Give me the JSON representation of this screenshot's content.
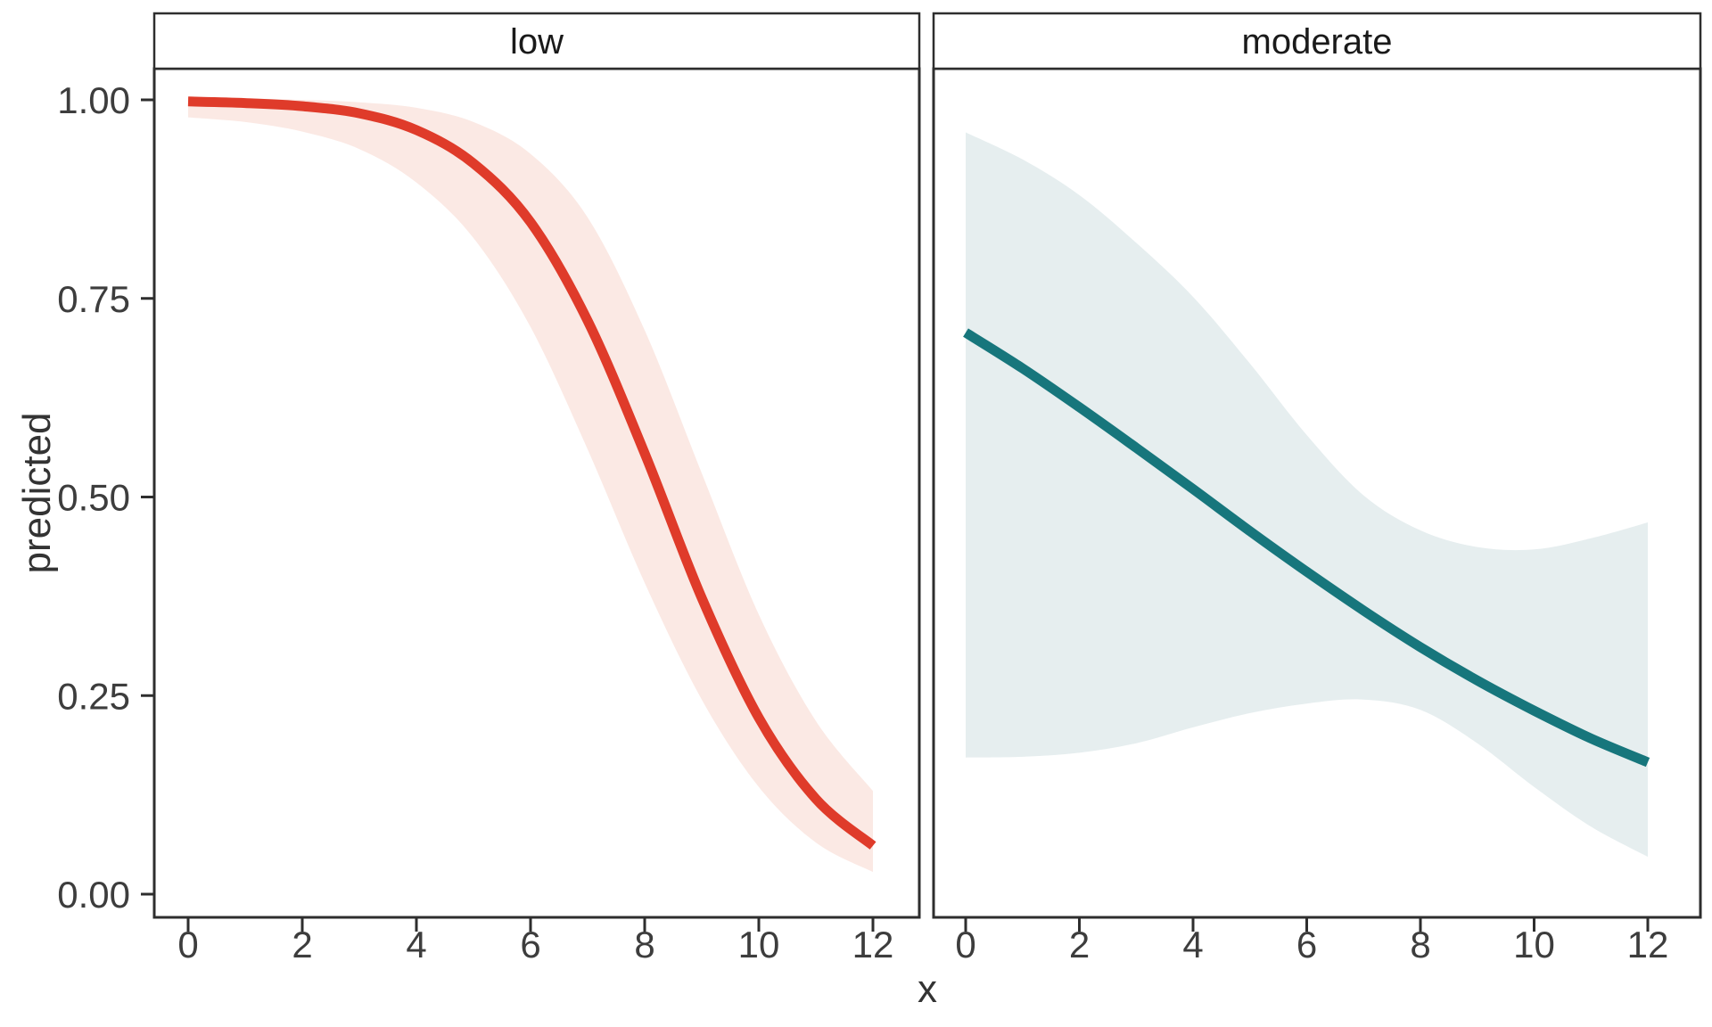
{
  "chart_data": {
    "type": "line",
    "title": "",
    "xlabel": "x",
    "ylabel": "predicted",
    "grid": "off",
    "legend": "none",
    "facet_labels": [
      "low",
      "moderate"
    ],
    "x_tick_labels": [
      "0",
      "2",
      "4",
      "6",
      "8",
      "10",
      "12"
    ],
    "x_tick_values": [
      0,
      2,
      4,
      6,
      8,
      10,
      12
    ],
    "y_tick_labels": [
      "0.00",
      "0.25",
      "0.50",
      "0.75",
      "1.00"
    ],
    "y_tick_values": [
      0,
      0.25,
      0.5,
      0.75,
      1.0
    ],
    "xlim": [
      -0.6,
      12.9
    ],
    "ylim": [
      -0.03,
      1.04
    ],
    "panels": [
      {
        "label": "low",
        "line_color": "#DF3B2A",
        "ribbon_color": "#FBE9E4",
        "x": [
          0,
          1,
          2,
          3,
          4,
          5,
          6,
          7,
          8,
          9,
          10,
          11,
          12
        ],
        "y": [
          0.998,
          0.996,
          0.992,
          0.983,
          0.962,
          0.92,
          0.846,
          0.722,
          0.555,
          0.373,
          0.222,
          0.12,
          0.061
        ],
        "ymax": [
          1.003,
          1.002,
          1.0,
          0.997,
          0.99,
          0.972,
          0.932,
          0.852,
          0.71,
          0.53,
          0.352,
          0.218,
          0.13
        ],
        "ymin": [
          0.978,
          0.972,
          0.96,
          0.938,
          0.896,
          0.826,
          0.714,
          0.56,
          0.392,
          0.245,
          0.135,
          0.065,
          0.028
        ]
      },
      {
        "label": "moderate",
        "line_color": "#17767C",
        "ribbon_color": "#E6EEEF",
        "x": [
          0,
          1,
          2,
          3,
          4,
          5,
          6,
          7,
          8,
          9,
          10,
          11,
          12
        ],
        "y": [
          0.707,
          0.662,
          0.613,
          0.562,
          0.51,
          0.457,
          0.406,
          0.357,
          0.311,
          0.269,
          0.231,
          0.196,
          0.166
        ],
        "ymax": [
          0.959,
          0.925,
          0.88,
          0.82,
          0.752,
          0.668,
          0.578,
          0.502,
          0.458,
          0.437,
          0.434,
          0.448,
          0.468
        ],
        "ymin": [
          0.172,
          0.173,
          0.178,
          0.19,
          0.21,
          0.228,
          0.24,
          0.245,
          0.232,
          0.19,
          0.135,
          0.085,
          0.047
        ]
      }
    ]
  },
  "colors": {
    "background": "#FFFFFF",
    "panel_background": "#FFFFFF",
    "panel_border": "#2E2E2E",
    "strip_background": "#FFFFFF",
    "strip_border": "#2E2E2E",
    "strip_text": "#1A1A1A",
    "axis_line": "#2E2E2E",
    "axis_text": "#3D3D3D",
    "axis_title_text": "#333333"
  }
}
